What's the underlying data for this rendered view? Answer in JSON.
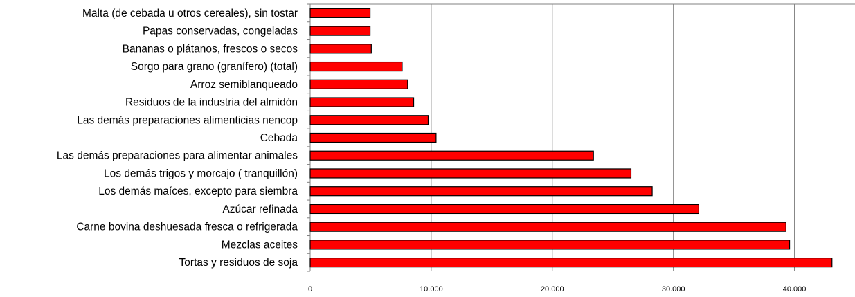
{
  "chart_data": {
    "type": "bar",
    "orientation": "horizontal",
    "categories": [
      "Malta (de cebada u otros cereales), sin tostar",
      "Papas  conservadas, congeladas",
      "Bananas o plátanos, frescos o secos",
      "Sorgo para grano (granífero) (total)",
      "Arroz semiblanqueado",
      "Residuos de la industria del almidón",
      "Las demás preparaciones alimenticias nencop",
      "Cebada",
      "Las demás preparaciones para alimentar animales",
      "Los demás trigos y morcajo ( tranquillón)",
      "Los demás maíces, excepto para siembra",
      "Azúcar refinada",
      "Carne bovina deshuesada fresca o refrigerada",
      "Mezclas aceites",
      "Tortas y residuos de soja"
    ],
    "values": [
      4950,
      4950,
      5050,
      7600,
      8050,
      8550,
      9750,
      10400,
      23400,
      26500,
      28250,
      32100,
      39300,
      39600,
      43100
    ],
    "xlim": [
      0,
      45000
    ],
    "xticks": [
      0,
      10000,
      20000,
      30000,
      40000
    ],
    "xtick_labels": [
      "0",
      "10.000",
      "20.000",
      "30.000",
      "40.000"
    ],
    "grid": "vertical",
    "bar_color": "#ff0000",
    "bar_edge_color": "#000000",
    "legend": "none"
  }
}
